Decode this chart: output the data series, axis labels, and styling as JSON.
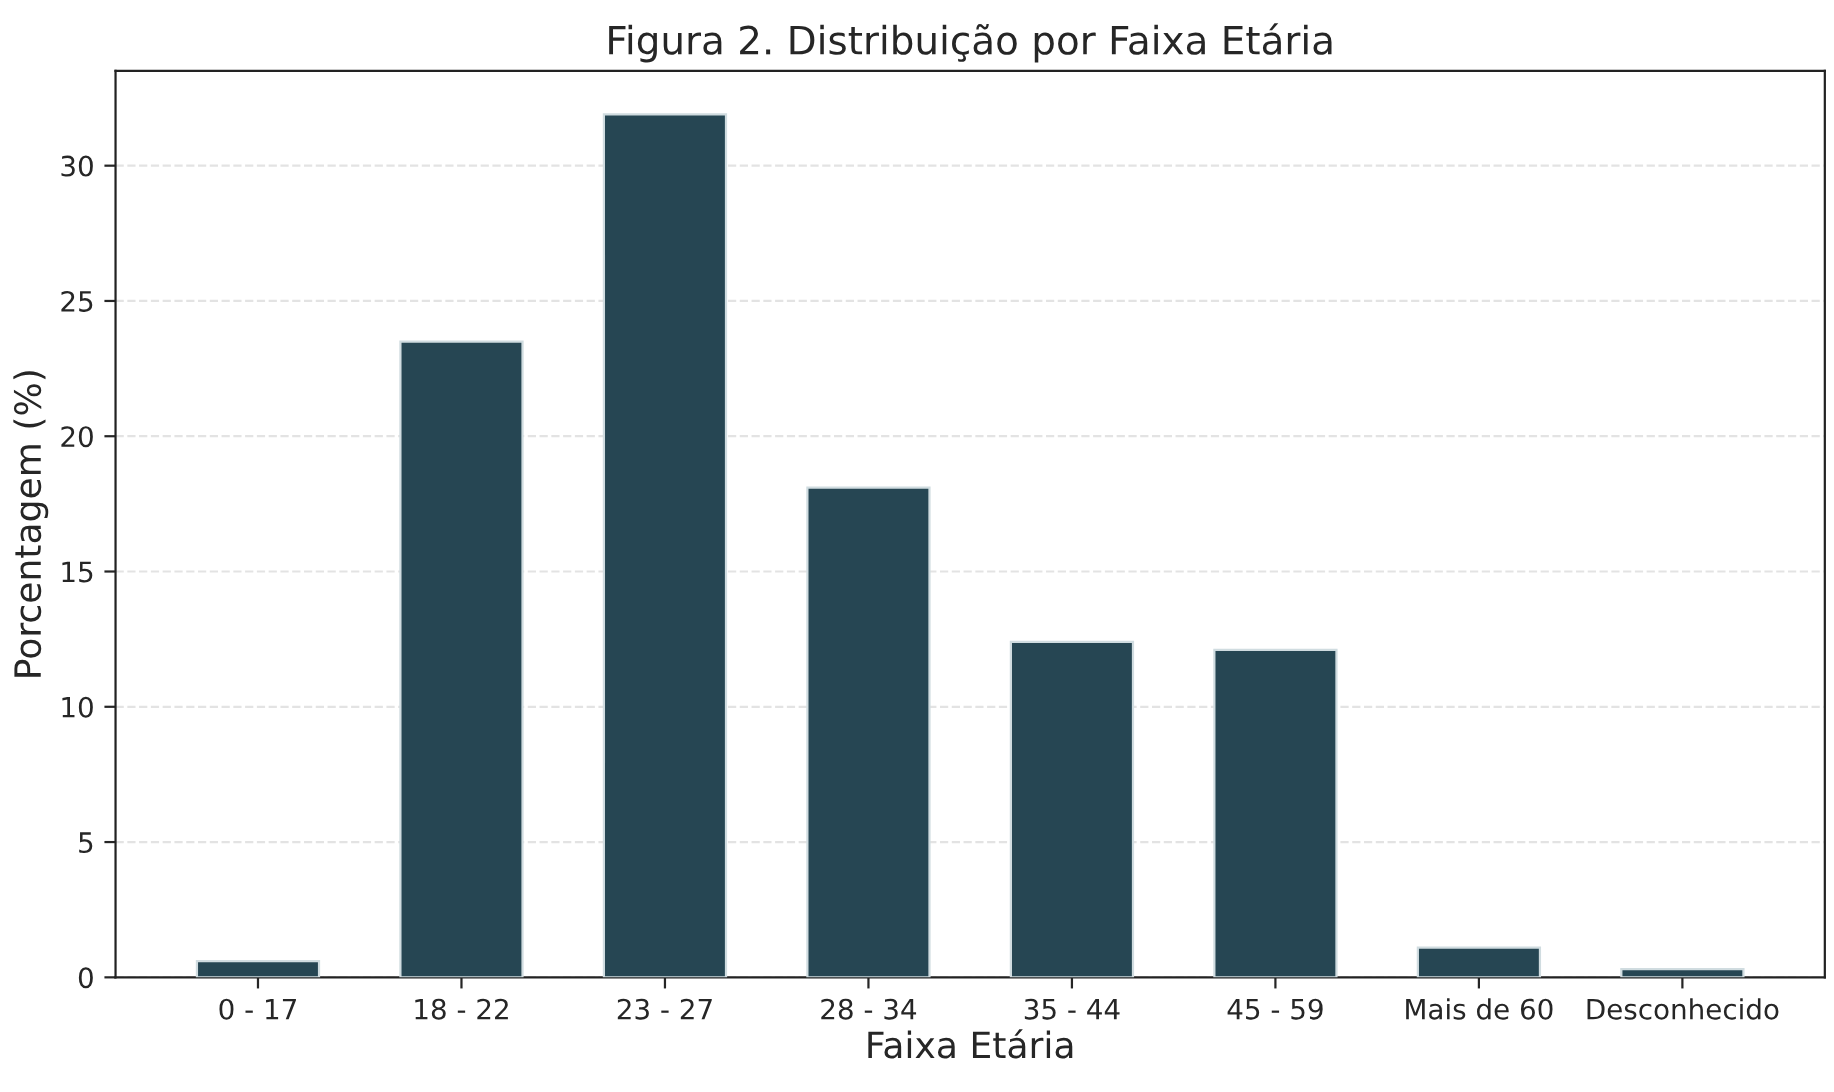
{
  "chart_data": {
    "type": "bar",
    "title": "Figura 2. Distribuição por Faixa Etária",
    "xlabel": "Faixa Etária",
    "ylabel": "Porcentagem (%)",
    "categories": [
      "0 - 17",
      "18 - 22",
      "23 - 27",
      "28 - 34",
      "35 - 44",
      "45 - 59",
      "Mais de 60",
      "Desconhecido"
    ],
    "values": [
      0.6,
      23.5,
      31.9,
      18.1,
      12.4,
      12.1,
      1.1,
      0.3
    ],
    "color": "#264653",
    "ylim": [
      0,
      33.5
    ],
    "yticks": [
      0,
      5,
      10,
      15,
      20,
      25,
      30
    ],
    "grid": "y"
  }
}
